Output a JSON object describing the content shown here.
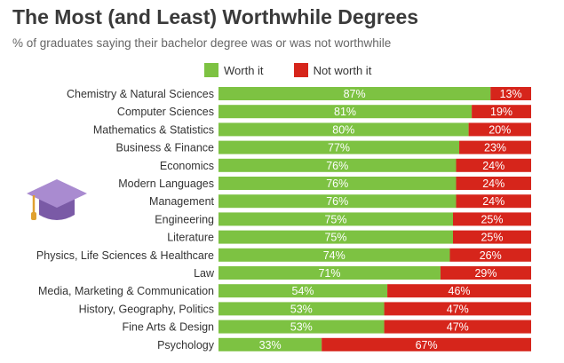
{
  "title": "The Most (and Least) Worthwhile Degrees",
  "subtitle": "% of graduates saying their bachelor degree was or was not worthwhile",
  "legend": {
    "worth": "Worth it",
    "not_worth": "Not worth it"
  },
  "colors": {
    "worth": "#7dc242",
    "not_worth": "#d6251b"
  },
  "icons": {
    "decoration": "graduation-cap-icon"
  },
  "chart_data": {
    "type": "bar",
    "orientation": "horizontal",
    "stacked": true,
    "title": "The Most (and Least) Worthwhile Degrees",
    "subtitle": "% of graduates saying their bachelor degree was or was not worthwhile",
    "xlabel": "",
    "ylabel": "",
    "xlim": [
      0,
      100
    ],
    "grid": false,
    "legend_position": "top",
    "categories": [
      "Chemistry & Natural Sciences",
      "Computer Sciences",
      "Mathematics & Statistics",
      "Business & Finance",
      "Economics",
      "Modern Languages",
      "Management",
      "Engineering",
      "Literature",
      "Physics, Life Sciences & Healthcare",
      "Law",
      "Media, Marketing & Communication",
      "History, Geography, Politics",
      "Fine Arts & Design",
      "Psychology"
    ],
    "series": [
      {
        "name": "Worth it",
        "values": [
          87,
          81,
          80,
          77,
          76,
          76,
          76,
          75,
          75,
          74,
          71,
          54,
          53,
          53,
          33
        ]
      },
      {
        "name": "Not worth it",
        "values": [
          13,
          19,
          20,
          23,
          24,
          24,
          24,
          25,
          25,
          26,
          29,
          46,
          47,
          47,
          67
        ]
      }
    ]
  }
}
